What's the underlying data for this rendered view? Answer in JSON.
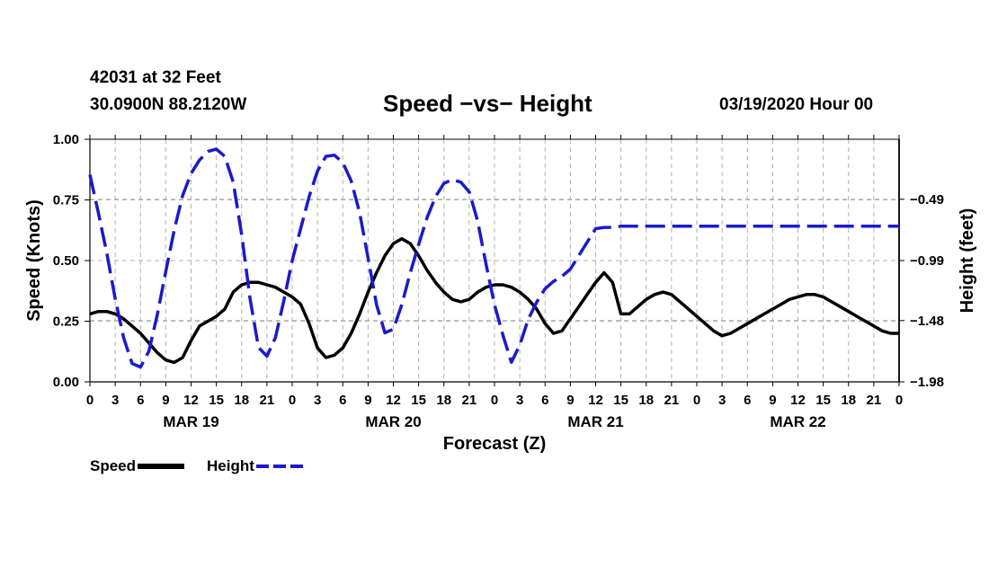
{
  "header": {
    "station": "42031 at 32 Feet",
    "coords": "30.0900N 88.2120W",
    "title": "Speed −vs− Height",
    "stamp": "03/19/2020 Hour 00"
  },
  "colors": {
    "speed": "#000000",
    "height": "#1a1acc",
    "grid": "#b0b0b0"
  },
  "legend": {
    "speed_label": "Speed",
    "height_label": "Height"
  },
  "chart_data": {
    "type": "line",
    "xlabel": "Forecast (Z)",
    "ylabel": "Speed (Knots)",
    "y2label": "Height (feet)",
    "xlim": [
      0,
      96
    ],
    "ylim": [
      0,
      1.0
    ],
    "y2lim": [
      -1.98,
      -0.0004
    ],
    "y_ticks": [
      0.0,
      0.25,
      0.5,
      0.75,
      1.0
    ],
    "y_tick_labels": [
      "0.00",
      "0.25",
      "0.50",
      "0.75",
      "1.00"
    ],
    "y2_ticks": [
      -1.98,
      -1.48,
      -0.99,
      -0.49
    ],
    "y2_tick_labels": [
      "−1.98",
      "−1.48",
      "−0.99",
      "−0.49"
    ],
    "x_ticks": [
      0,
      3,
      6,
      9,
      12,
      15,
      18,
      21,
      24,
      27,
      30,
      33,
      36,
      39,
      42,
      45,
      48,
      51,
      54,
      57,
      60,
      63,
      66,
      69,
      72,
      75,
      78,
      81,
      84,
      87,
      90,
      93,
      96
    ],
    "x_tick_labels": [
      "0",
      "3",
      "6",
      "9",
      "12",
      "15",
      "18",
      "21",
      "0",
      "3",
      "6",
      "9",
      "12",
      "15",
      "18",
      "21",
      "0",
      "3",
      "6",
      "9",
      "12",
      "15",
      "18",
      "21",
      "0",
      "3",
      "6",
      "9",
      "12",
      "15",
      "18",
      "21",
      "0"
    ],
    "day_labels": [
      {
        "x": 12,
        "label": "MAR 19"
      },
      {
        "x": 36,
        "label": "MAR 20"
      },
      {
        "x": 60,
        "label": "MAR 21"
      },
      {
        "x": 84,
        "label": "MAR 22"
      }
    ],
    "series": [
      {
        "name": "Speed",
        "axis": "left",
        "style": "solid",
        "x": [
          0,
          1,
          2,
          3,
          4,
          5,
          6,
          7,
          8,
          9,
          10,
          11,
          12,
          13,
          14,
          15,
          16,
          17,
          18,
          19,
          20,
          21,
          22,
          23,
          24,
          25,
          26,
          27,
          28,
          29,
          30,
          31,
          32,
          33,
          34,
          35,
          36,
          37,
          38,
          39,
          40,
          41,
          42,
          43,
          44,
          45,
          46,
          47,
          48,
          49,
          50,
          51,
          52,
          53,
          54,
          55,
          56,
          57,
          58,
          59,
          60,
          61,
          62,
          63,
          64,
          65,
          66,
          67,
          68,
          69,
          70,
          71,
          72,
          73,
          74,
          75,
          76,
          77,
          78,
          79,
          80,
          81,
          82,
          83,
          84,
          85,
          86,
          87,
          88,
          89,
          90,
          91,
          92,
          93,
          94,
          95,
          96
        ],
        "values": [
          0.28,
          0.29,
          0.29,
          0.28,
          0.26,
          0.23,
          0.2,
          0.16,
          0.12,
          0.09,
          0.08,
          0.1,
          0.17,
          0.23,
          0.25,
          0.27,
          0.3,
          0.37,
          0.4,
          0.41,
          0.41,
          0.4,
          0.39,
          0.37,
          0.35,
          0.32,
          0.24,
          0.14,
          0.1,
          0.11,
          0.14,
          0.2,
          0.28,
          0.37,
          0.45,
          0.52,
          0.57,
          0.59,
          0.57,
          0.52,
          0.46,
          0.41,
          0.37,
          0.34,
          0.33,
          0.34,
          0.37,
          0.39,
          0.4,
          0.4,
          0.39,
          0.37,
          0.34,
          0.3,
          0.24,
          0.2,
          0.21,
          0.26,
          0.31,
          0.36,
          0.41,
          0.45,
          0.41,
          0.28,
          0.28,
          0.31,
          0.34,
          0.36,
          0.37,
          0.36,
          0.33,
          0.3,
          0.27,
          0.24,
          0.21,
          0.19,
          0.2,
          0.22,
          0.24,
          0.26,
          0.28,
          0.3,
          0.32,
          0.34,
          0.35,
          0.36,
          0.36,
          0.35,
          0.33,
          0.31,
          0.29,
          0.27,
          0.25,
          0.23,
          0.21,
          0.2,
          0.2
        ]
      },
      {
        "name": "Height",
        "axis": "right",
        "style": "dashed",
        "x": [
          0,
          1,
          2,
          3,
          4,
          5,
          6,
          7,
          8,
          9,
          10,
          11,
          12,
          13,
          14,
          15,
          16,
          17,
          18,
          19,
          20,
          21,
          22,
          23,
          24,
          25,
          26,
          27,
          28,
          29,
          30,
          31,
          32,
          33,
          34,
          35,
          36,
          37,
          38,
          39,
          40,
          41,
          42,
          43,
          44,
          45,
          46,
          47,
          48,
          49,
          50,
          51,
          52,
          53,
          54,
          55,
          56,
          57,
          58,
          59,
          60,
          61,
          62,
          63,
          64,
          65,
          66,
          67,
          68,
          69,
          70,
          71,
          72,
          73,
          74,
          75,
          76,
          77,
          78,
          79,
          80,
          81,
          82,
          83,
          84,
          85,
          86,
          87,
          88,
          89,
          90,
          91,
          92,
          93,
          94,
          95,
          96
        ],
        "values": [
          -0.29,
          -0.6,
          -0.93,
          -1.3,
          -1.62,
          -1.83,
          -1.86,
          -1.73,
          -1.43,
          -1.08,
          -0.74,
          -0.46,
          -0.28,
          -0.17,
          -0.1,
          -0.08,
          -0.14,
          -0.35,
          -0.78,
          -1.3,
          -1.7,
          -1.77,
          -1.62,
          -1.32,
          -0.99,
          -0.73,
          -0.47,
          -0.26,
          -0.14,
          -0.13,
          -0.19,
          -0.34,
          -0.6,
          -0.97,
          -1.35,
          -1.58,
          -1.55,
          -1.35,
          -1.09,
          -0.86,
          -0.64,
          -0.47,
          -0.36,
          -0.33,
          -0.35,
          -0.43,
          -0.67,
          -1.02,
          -1.35,
          -1.6,
          -1.82,
          -1.68,
          -1.47,
          -1.33,
          -1.22,
          -1.16,
          -1.12,
          -1.06,
          -0.95,
          -0.84,
          -0.73,
          -0.72,
          -0.72,
          -0.71,
          -0.71,
          -0.71,
          -0.71,
          -0.71,
          -0.71,
          -0.71,
          -0.71,
          -0.71,
          -0.71,
          -0.71,
          -0.71,
          -0.71,
          -0.71,
          -0.71,
          -0.71,
          -0.71,
          -0.71,
          -0.71,
          -0.71,
          -0.71,
          -0.71,
          -0.71,
          -0.71,
          -0.71,
          -0.71,
          -0.71,
          -0.71,
          -0.71,
          -0.71,
          -0.71,
          -0.71,
          -0.71,
          -0.71
        ]
      }
    ]
  }
}
